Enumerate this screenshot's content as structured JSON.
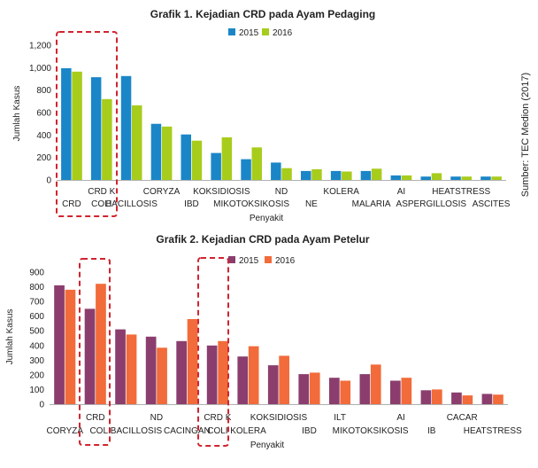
{
  "source_note": "Sumber: TEC Medion (2017)",
  "chart_data": [
    {
      "type": "bar",
      "title": "Grafik 1. Kejadian CRD pada Ayam Pedaging",
      "xlabel": "Penyakit",
      "ylabel": "Jumlah Kasus",
      "ylim": [
        0,
        1200
      ],
      "yticks": [
        "0",
        "200",
        "400",
        "600",
        "800",
        "1,000",
        "1,200"
      ],
      "grid": false,
      "legend_position": "top-center",
      "categories": [
        "CRD",
        "CRD K COLI",
        "BACILLOSIS",
        "CORYZA",
        "IBD",
        "KOKSIDIOSIS",
        "MIKOTOKSIKOSIS",
        "ND",
        "NE",
        "KOLERA",
        "MALARIA",
        "AI",
        "ASPERGILLOSIS",
        "HEATSTRESS",
        "ASCITES"
      ],
      "category_rows": [
        [
          "",
          "CRD K",
          "",
          "CORYZA",
          "",
          "KOKSIDIOSIS",
          "",
          "ND",
          "",
          "KOLERA",
          "",
          "AI",
          "",
          "HEATSTRESS",
          ""
        ],
        [
          "CRD",
          "COLI",
          "BACILLOSIS",
          "",
          "IBD",
          "",
          "MIKOTOKSIKOSIS",
          "",
          "NE",
          "",
          "MALARIA",
          "",
          "ASPERGILLOSIS",
          "",
          "ASCITES"
        ]
      ],
      "series": [
        {
          "name": "2015",
          "color": "#1a86c8",
          "values": [
            995,
            915,
            925,
            500,
            405,
            240,
            185,
            155,
            80,
            80,
            80,
            40,
            30,
            30,
            30
          ]
        },
        {
          "name": "2016",
          "color": "#a8cc1c",
          "values": [
            965,
            720,
            665,
            475,
            350,
            380,
            290,
            105,
            95,
            75,
            100,
            40,
            60,
            30,
            30
          ]
        }
      ],
      "highlight_categories": [
        "CRD",
        "CRD K COLI"
      ]
    },
    {
      "type": "bar",
      "title": "Grafik 2. Kejadian CRD pada Ayam Petelur",
      "xlabel": "Penyakit",
      "ylabel": "Jumlah Kasus",
      "ylim": [
        0,
        900
      ],
      "yticks": [
        "0",
        "100",
        "200",
        "300",
        "400",
        "500",
        "600",
        "700",
        "800",
        "900"
      ],
      "grid": false,
      "legend_position": "top-center",
      "categories": [
        "CORYZA",
        "CRD",
        "COLIBACILLOSIS",
        "ND",
        "CACINGAN",
        "CRD K COLI",
        "KOLERA",
        "KOKSIDIOSIS",
        "IBD",
        "ILT",
        "MIKOTOKSIKOSIS",
        "AI",
        "IB",
        "CACAR",
        "HEATSTRESS"
      ],
      "category_rows": [
        [
          "",
          "CRD",
          "",
          "ND",
          "",
          "CRD K",
          "",
          "KOKSIDIOSIS",
          "",
          "ILT",
          "",
          "AI",
          "",
          "CACAR",
          ""
        ],
        [
          "CORYZA",
          "",
          "COLIBACILLOSIS",
          "",
          "CACINGAN",
          "COLI",
          "KOLERA",
          "",
          "IBD",
          "",
          "MIKOTOKSIKOSIS",
          "",
          "IB",
          "",
          "HEATSTRESS"
        ]
      ],
      "series": [
        {
          "name": "2015",
          "color": "#8b3e6e",
          "values": [
            810,
            650,
            510,
            460,
            430,
            400,
            325,
            265,
            205,
            180,
            205,
            160,
            95,
            80,
            70
          ]
        },
        {
          "name": "2016",
          "color": "#f26b3a",
          "values": [
            780,
            820,
            475,
            385,
            580,
            430,
            395,
            330,
            215,
            160,
            270,
            180,
            100,
            60,
            65
          ]
        }
      ],
      "highlight_categories": [
        "CRD",
        "CRD K COLI"
      ]
    }
  ]
}
